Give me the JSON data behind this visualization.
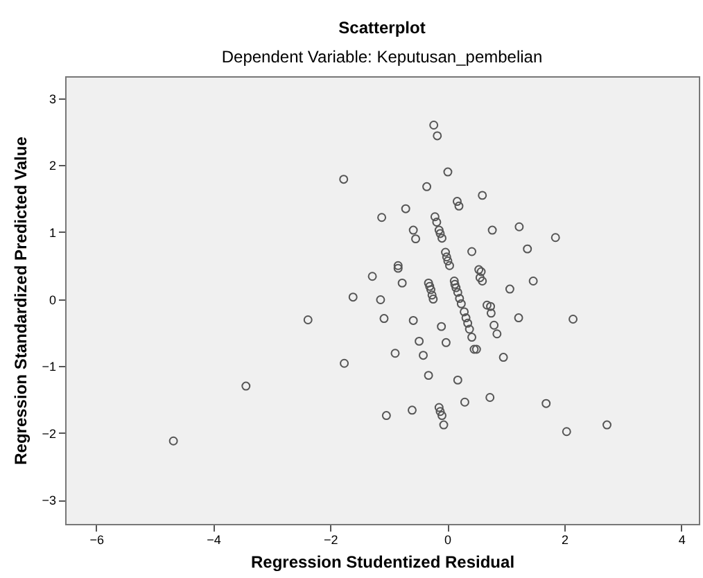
{
  "chart_data": {
    "type": "scatter",
    "title": "Scatterplot",
    "subtitle": "Dependent Variable: Keputusan_pembelian",
    "xlabel": "Regression Studentized Residual",
    "ylabel": "Regression Standardized Predicted Value",
    "xlim": [
      -6.53,
      4.3
    ],
    "ylim": [
      -3.36,
      3.33
    ],
    "xticks": [
      -6,
      -4,
      -2,
      0,
      2,
      4
    ],
    "yticks": [
      -3,
      -2,
      -1,
      0,
      1,
      2,
      3
    ],
    "grid": false,
    "marker": "circle",
    "series": [
      {
        "color": "#555555",
        "x": [
          -1.77,
          -1.12,
          -1.28,
          -0.23,
          -0.17,
          0.01,
          -0.35,
          0.6,
          0.17,
          0.2,
          -0.71,
          -0.21,
          -0.18,
          -0.14,
          -0.12,
          -0.09,
          -0.58,
          -0.54,
          0.77,
          1.23,
          1.85,
          1.37,
          0.42,
          -0.03,
          -0.01,
          0.01,
          0.04,
          -0.84,
          -0.84,
          -0.77,
          -0.32,
          -0.3,
          0.12,
          0.13,
          0.54,
          0.58,
          0.56,
          0.6,
          1.07,
          1.47,
          -0.28,
          -0.26,
          -0.24,
          -1.14,
          0.15,
          0.18,
          0.21,
          0.24,
          0.29,
          0.32,
          0.35,
          0.38,
          0.42,
          0.46,
          0.5,
          0.68,
          0.74,
          0.75,
          0.8,
          0.85,
          1.22,
          2.15,
          -1.08,
          -0.58,
          -0.1,
          -0.48,
          -0.02,
          -0.89,
          -0.41,
          0.96,
          -0.32,
          0.18,
          0.3,
          0.73,
          1.69,
          -0.14,
          -0.12,
          -0.09,
          -0.06,
          -0.6,
          -1.04,
          2.04,
          2.73,
          -1.61,
          -2.38,
          -1.76,
          -3.44,
          -4.68
        ],
        "values": [
          1.79,
          1.22,
          0.34,
          2.6,
          2.44,
          1.9,
          1.68,
          1.55,
          1.46,
          1.39,
          1.35,
          1.23,
          1.15,
          1.03,
          0.98,
          0.91,
          1.03,
          0.9,
          1.03,
          1.08,
          0.92,
          0.75,
          0.71,
          0.7,
          0.63,
          0.57,
          0.5,
          0.5,
          0.46,
          0.24,
          0.24,
          0.19,
          0.27,
          0.22,
          0.44,
          0.41,
          0.32,
          0.27,
          0.15,
          0.27,
          0.14,
          0.06,
          0.0,
          -0.01,
          0.17,
          0.1,
          0.01,
          -0.07,
          -0.19,
          -0.28,
          -0.36,
          -0.45,
          -0.57,
          -0.75,
          -0.75,
          -0.09,
          -0.11,
          -0.21,
          -0.39,
          -0.52,
          -0.28,
          -0.3,
          -0.29,
          -0.32,
          -0.41,
          -0.63,
          -0.65,
          -0.81,
          -0.84,
          -0.87,
          -1.14,
          -1.21,
          -1.54,
          -1.47,
          -1.56,
          -1.62,
          -1.68,
          -1.74,
          -1.88,
          -1.66,
          -1.74,
          -1.98,
          -1.88,
          0.03,
          -0.31,
          -0.96,
          -1.3,
          -2.12
        ]
      }
    ]
  }
}
